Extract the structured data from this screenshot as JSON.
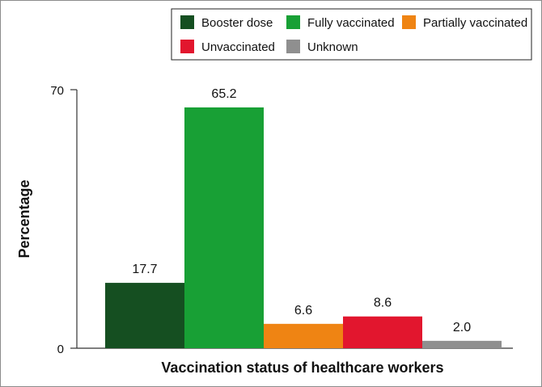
{
  "chart_data": {
    "type": "bar",
    "categories": [
      "Booster dose",
      "Fully vaccinated",
      "Partially vaccinated",
      "Unvaccinated",
      "Unknown"
    ],
    "values": [
      17.7,
      65.2,
      6.6,
      8.6,
      2.0
    ],
    "value_labels": [
      "17.7",
      "65.2",
      "6.6",
      "8.6",
      "2.0"
    ],
    "colors": [
      "#154f21",
      "#18a035",
      "#ef8413",
      "#e2162e",
      "#8f8f8f"
    ],
    "xlabel": "Vaccination status of healthcare workers",
    "ylabel": "Percentage",
    "ylim": [
      0,
      70
    ],
    "yticks": [
      "0",
      "70"
    ],
    "legend": {
      "position": "top-right",
      "entries": [
        "Booster dose",
        "Fully vaccinated",
        "Partially vaccinated",
        "Unvaccinated",
        "Unknown"
      ]
    },
    "grid": false
  }
}
